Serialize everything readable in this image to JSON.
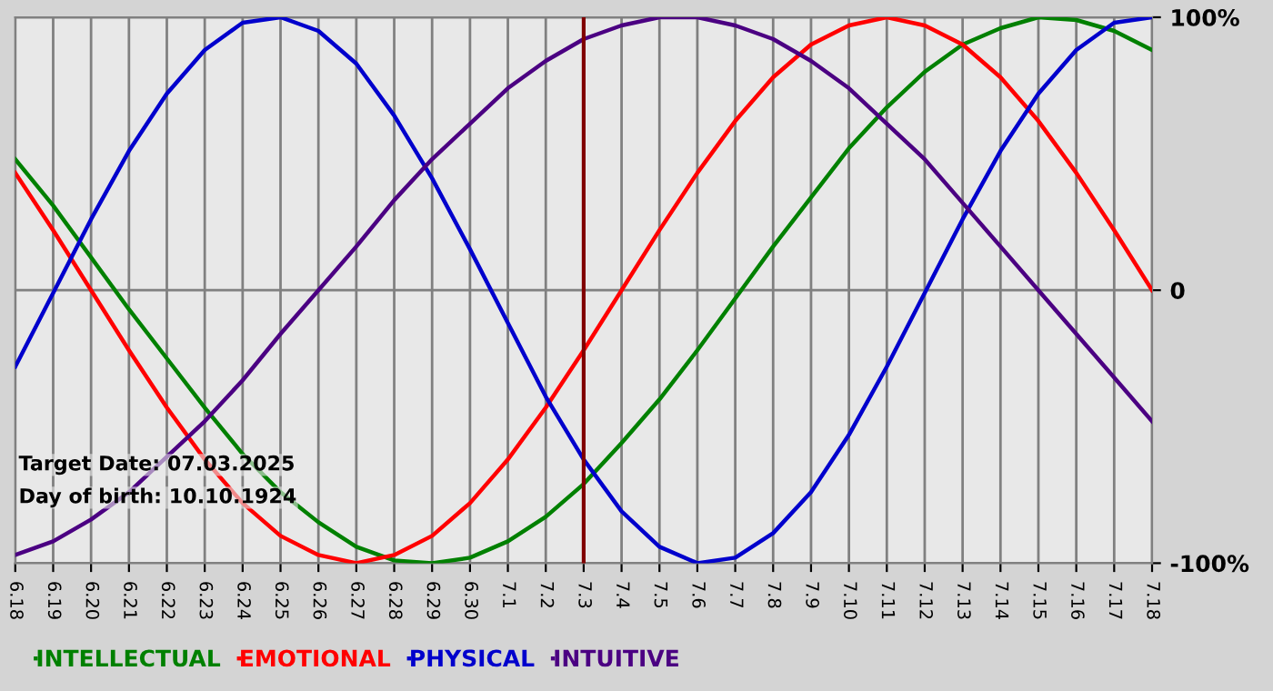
{
  "chart_data": {
    "type": "line",
    "categories": [
      "6.18",
      "6.19",
      "6.20",
      "6.21",
      "6.22",
      "6.23",
      "6.24",
      "6.25",
      "6.26",
      "6.27",
      "6.28",
      "6.29",
      "6.30",
      "7.1",
      "7.2",
      "7.3",
      "7.4",
      "7.5",
      "7.6",
      "7.7",
      "7.8",
      "7.9",
      "7.10",
      "7.11",
      "7.12",
      "7.13",
      "7.14",
      "7.15",
      "7.16",
      "7.17",
      "7.18"
    ],
    "series": [
      {
        "name": "INTELLECTUAL",
        "color": "#008000",
        "values": [
          48,
          31,
          12,
          -7,
          -25,
          -43,
          -60,
          -74,
          -85,
          -94,
          -99,
          -100,
          -98,
          -92,
          -83,
          -71,
          -56,
          -40,
          -22,
          -3,
          16,
          34,
          52,
          67,
          80,
          90,
          96,
          100,
          99,
          95,
          88
        ]
      },
      {
        "name": "EMOTIONAL",
        "color": "#ff0000",
        "values": [
          43,
          22,
          0,
          -22,
          -43,
          -62,
          -78,
          -90,
          -97,
          -100,
          -97,
          -90,
          -78,
          -62,
          -43,
          -22,
          0,
          22,
          43,
          62,
          78,
          90,
          97,
          100,
          97,
          90,
          78,
          62,
          43,
          22,
          0
        ]
      },
      {
        "name": "PHYSICAL",
        "color": "#0000cc",
        "values": [
          -28,
          -1,
          26,
          51,
          72,
          88,
          98,
          100,
          95,
          83,
          64,
          41,
          15,
          -12,
          -39,
          -62,
          -81,
          -94,
          -100,
          -98,
          -89,
          -74,
          -53,
          -28,
          -1,
          26,
          51,
          72,
          88,
          98,
          100
        ]
      },
      {
        "name": "INTUITIVE",
        "color": "#4b0082",
        "values": [
          -97,
          -92,
          -84,
          -74,
          -61,
          -48,
          -33,
          -16,
          0,
          16,
          33,
          48,
          61,
          74,
          84,
          92,
          97,
          100,
          100,
          97,
          92,
          84,
          74,
          61,
          48,
          32,
          16,
          0,
          -16,
          -32,
          -48
        ]
      }
    ],
    "ylim": [
      -100,
      100
    ],
    "yticks": [
      {
        "value": -100,
        "label": "-100%"
      },
      0,
      {
        "value": 100,
        "label": "100%"
      }
    ],
    "grid": true,
    "legend": "bottom",
    "marker": "none",
    "line_style": "solid",
    "ref_lines": [
      {
        "axis": "x",
        "value": "7.3",
        "color": "#800000"
      }
    ],
    "annotations": [
      "Target Date: 07.03.2025",
      "Day of birth: 10.10.1924"
    ]
  }
}
